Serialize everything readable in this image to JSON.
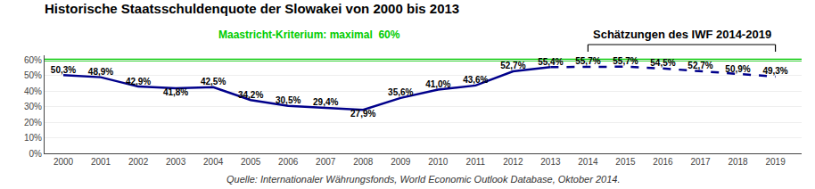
{
  "chart_data": {
    "type": "line",
    "title": "Historische Staatsschuldenquote der Slowakei von 2000 bis 2013",
    "annotations": [
      "Maastricht-Kriterium: maximal  60%",
      "Schätzungen des IWF 2014-2019",
      "Quelle: Internationaler Währungsfonds, World Economic Outlook Database, Oktober 2014."
    ],
    "xlim": [
      1999.5,
      2019.7
    ],
    "xticks": [
      2000,
      2001,
      2002,
      2003,
      2004,
      2005,
      2006,
      2007,
      2008,
      2009,
      2010,
      2011,
      2012,
      2013,
      2014,
      2015,
      2016,
      2017,
      2018,
      2019
    ],
    "ylim": [
      0,
      63
    ],
    "yticks": [
      {
        "value": 0,
        "label": "0%"
      },
      {
        "value": 10,
        "label": "10%"
      },
      {
        "value": 20,
        "label": "20%"
      },
      {
        "value": 30,
        "label": "30%"
      },
      {
        "value": 40,
        "label": "40%"
      },
      {
        "value": 50,
        "label": "50%"
      },
      {
        "value": 60,
        "label": "60%"
      }
    ],
    "grid": "y",
    "data_labels": true,
    "series": [
      {
        "x": [
          2000,
          2001,
          2002,
          2003,
          2004,
          2005,
          2006,
          2007,
          2008,
          2009,
          2010,
          2011,
          2012,
          2013
        ],
        "values": [
          50.3,
          48.9,
          42.9,
          41.8,
          42.5,
          34.2,
          30.5,
          29.4,
          27.9,
          35.6,
          41.0,
          43.6,
          52.7,
          55.4
        ],
        "value_labels": [
          "50,3%",
          "48,9%",
          "42,9%",
          "41,8%",
          "42,5%",
          "34,2%",
          "30,5%",
          "29,4%",
          "27,9%",
          "35,6%",
          "41,0%",
          "43,6%",
          "52,7%",
          "55,4%"
        ],
        "color": "#00008B",
        "line_style": "solid"
      },
      {
        "x": [
          2013,
          2014,
          2015,
          2016,
          2017,
          2018,
          2019
        ],
        "values": [
          55.4,
          55.7,
          55.7,
          54.5,
          52.7,
          50.9,
          49.3
        ],
        "value_labels": [
          null,
          "55,7%",
          "55,7%",
          "54,5%",
          "52,7%",
          "50,9%",
          "49,3%"
        ],
        "color": "#00008B",
        "line_style": "dashed"
      }
    ],
    "reference_line": {
      "value": 60,
      "color": "#00CC00"
    }
  }
}
